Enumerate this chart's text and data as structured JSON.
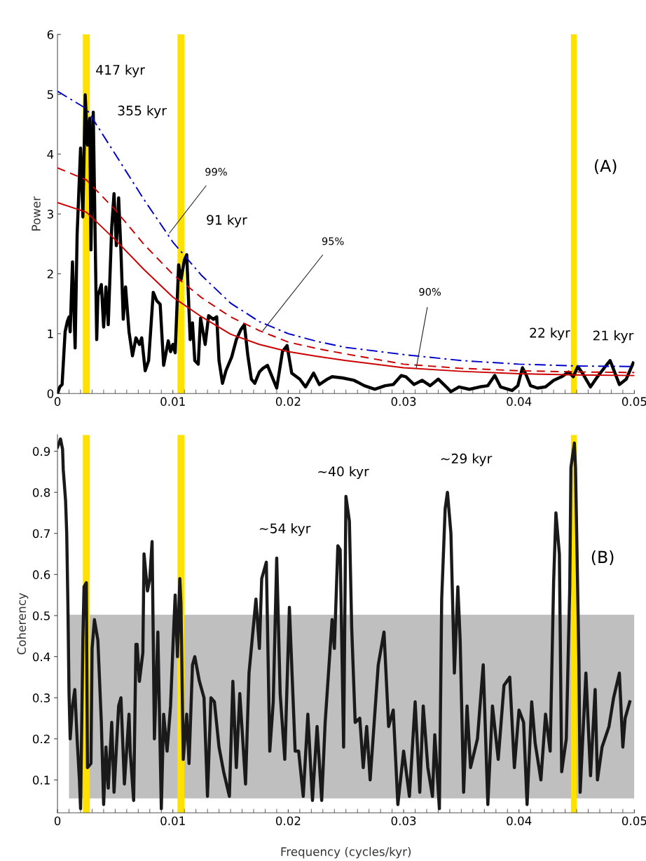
{
  "chart_data": [
    {
      "type": "line",
      "ylabel": "Power",
      "xlim": [
        0,
        0.05
      ],
      "xticks": [
        0,
        0.01,
        0.02,
        0.03,
        0.04,
        0.05
      ],
      "ylim": [
        0,
        6
      ],
      "yticks": [
        0,
        1,
        2,
        3,
        4,
        5,
        6
      ],
      "grid": false,
      "legend": false,
      "marker": "none",
      "series": [
        {
          "color": "#000000",
          "line_style": "solid",
          "x": [
            0,
            0.0002,
            0.0004,
            0.00066,
            0.00085,
            0.001,
            0.0011,
            0.0013,
            0.00153,
            0.0017,
            0.002,
            0.0022,
            0.0024,
            0.0026,
            0.0028,
            0.0029,
            0.0031,
            0.0034,
            0.0035,
            0.0038,
            0.004,
            0.0042,
            0.0044,
            0.0047,
            0.0049,
            0.0051,
            0.0053,
            0.0055,
            0.0057,
            0.0059,
            0.0062,
            0.0065,
            0.0068,
            0.0071,
            0.0073,
            0.0076,
            0.0079,
            0.0083,
            0.0086,
            0.0089,
            0.0092,
            0.0096,
            0.0098,
            0.01,
            0.0102,
            0.0105,
            0.0107,
            0.011,
            0.0112,
            0.0115,
            0.0117,
            0.0119,
            0.0122,
            0.0124,
            0.0128,
            0.0131,
            0.0135,
            0.0138,
            0.014,
            0.0143,
            0.0146,
            0.0151,
            0.0155,
            0.0159,
            0.0162,
            0.0165,
            0.0168,
            0.0171,
            0.0175,
            0.0178,
            0.0182,
            0.0186,
            0.019,
            0.0195,
            0.0199,
            0.0203,
            0.021,
            0.0215,
            0.0222,
            0.0227,
            0.0234,
            0.0238,
            0.0247,
            0.0257,
            0.0266,
            0.0275,
            0.0284,
            0.0291,
            0.0298,
            0.0302,
            0.0309,
            0.0316,
            0.0323,
            0.033,
            0.0337,
            0.0341,
            0.0348,
            0.0357,
            0.0366,
            0.0373,
            0.0379,
            0.0384,
            0.0394,
            0.0399,
            0.0403,
            0.0406,
            0.041,
            0.0416,
            0.0423,
            0.043,
            0.0437,
            0.0443,
            0.0447,
            0.0451,
            0.0455,
            0.0462,
            0.0468,
            0.0474,
            0.0479,
            0.0487,
            0.0493,
            0.0499
          ],
          "values": [
            0,
            0.11,
            0.15,
            1.03,
            1.2,
            1.28,
            1.03,
            2.2,
            0.76,
            2.65,
            4.1,
            2.95,
            4.99,
            4.15,
            4.6,
            2.4,
            4.7,
            0.9,
            1.63,
            1.82,
            1.11,
            1.78,
            1.15,
            2.78,
            3.34,
            2.47,
            3.27,
            2.38,
            1.24,
            1.78,
            1.03,
            0.63,
            0.93,
            0.82,
            0.93,
            0.38,
            0.55,
            1.69,
            1.55,
            1.49,
            0.47,
            0.88,
            0.7,
            0.82,
            0.68,
            2.15,
            1.9,
            2.23,
            2.32,
            0.9,
            1.18,
            0.55,
            0.49,
            1.26,
            0.82,
            1.3,
            1.24,
            1.28,
            0.55,
            0.17,
            0.38,
            0.61,
            0.9,
            1.07,
            1.15,
            0.63,
            0.24,
            0.17,
            0.36,
            0.42,
            0.47,
            0.28,
            0.09,
            0.7,
            0.8,
            0.34,
            0.24,
            0.11,
            0.34,
            0.15,
            0.24,
            0.28,
            0.26,
            0.22,
            0.13,
            0.07,
            0.13,
            0.15,
            0.3,
            0.28,
            0.15,
            0.22,
            0.13,
            0.24,
            0.11,
            0.03,
            0.11,
            0.07,
            0.11,
            0.13,
            0.3,
            0.11,
            0.05,
            0.13,
            0.43,
            0.32,
            0.13,
            0.09,
            0.11,
            0.22,
            0.28,
            0.36,
            0.28,
            0.45,
            0.34,
            0.11,
            0.28,
            0.43,
            0.55,
            0.15,
            0.24,
            0.51
          ]
        },
        {
          "color": "#0000cc",
          "line_style": "dashdot",
          "x": [
            0,
            0.0025,
            0.005,
            0.0075,
            0.01,
            0.0125,
            0.015,
            0.0175,
            0.02,
            0.0225,
            0.025,
            0.03,
            0.035,
            0.04,
            0.045,
            0.05
          ],
          "values": [
            5.05,
            4.76,
            4.0,
            3.24,
            2.53,
            1.97,
            1.51,
            1.2,
            1.0,
            0.87,
            0.77,
            0.65,
            0.55,
            0.49,
            0.46,
            0.45
          ]
        },
        {
          "color": "#cc0000",
          "line_style": "dashed",
          "x": [
            0,
            0.0025,
            0.005,
            0.0075,
            0.01,
            0.0125,
            0.015,
            0.0175,
            0.02,
            0.0225,
            0.025,
            0.03,
            0.035,
            0.04,
            0.045,
            0.05
          ],
          "values": [
            3.77,
            3.57,
            3.07,
            2.49,
            1.99,
            1.6,
            1.28,
            1.05,
            0.86,
            0.75,
            0.66,
            0.49,
            0.42,
            0.38,
            0.36,
            0.35
          ]
        },
        {
          "color": "#cc0000",
          "line_style": "solid",
          "x": [
            0,
            0.0025,
            0.005,
            0.0075,
            0.01,
            0.0125,
            0.015,
            0.0175,
            0.02,
            0.0225,
            0.025,
            0.03,
            0.035,
            0.04,
            0.045,
            0.05
          ],
          "values": [
            3.19,
            3.03,
            2.57,
            2.07,
            1.61,
            1.28,
            0.99,
            0.82,
            0.7,
            0.62,
            0.55,
            0.43,
            0.37,
            0.33,
            0.31,
            0.3
          ]
        }
      ],
      "bands": [
        {
          "axis": "x",
          "from": 0.0022,
          "to": 0.0028,
          "color": "#ffe100"
        },
        {
          "axis": "x",
          "from": 0.0104,
          "to": 0.011,
          "color": "#ffe100"
        },
        {
          "axis": "x",
          "from": 0.0445,
          "to": 0.045,
          "color": "#ffe100"
        }
      ],
      "annotations": [
        {
          "text": "417 kyr",
          "x": 0.0024,
          "y": 4.99
        },
        {
          "text": "355 kyr",
          "x": 0.0031,
          "y": 4.7
        },
        {
          "text": "91 kyr",
          "x": 0.0112,
          "y": 2.32
        },
        {
          "text": "22 kyr",
          "x": 0.0451,
          "y": 0.45
        },
        {
          "text": "21 kyr",
          "x": 0.0479,
          "y": 0.55
        },
        {
          "text": "99%",
          "x": 0.0097,
          "y": 2.68
        },
        {
          "text": "95%",
          "x": 0.0178,
          "y": 1.05
        },
        {
          "text": "90%",
          "x": 0.0311,
          "y": 0.43
        },
        "(A)"
      ]
    },
    {
      "type": "line",
      "xlabel": "Frequency (cycles/kyr)",
      "ylabel": "Coherency",
      "xlim": [
        0,
        0.05
      ],
      "xticks": [
        0,
        0.01,
        0.02,
        0.03,
        0.04,
        0.05
      ],
      "ylim": [
        0.02,
        0.94
      ],
      "yticks": [
        0.1,
        0.2,
        0.3,
        0.4,
        0.5,
        0.6,
        0.7,
        0.8,
        0.9
      ],
      "grid": false,
      "legend": false,
      "marker": "none",
      "series": [
        {
          "color": "#1a1a1a",
          "line_style": "solid",
          "x": [
            0,
            0.00026,
            0.00044,
            0.0005,
            0.0007,
            0.0008,
            0.0009,
            0.001,
            0.0011,
            0.0013,
            0.0015,
            0.0017,
            0.0019,
            0.002,
            0.0022,
            0.0023,
            0.0025,
            0.0026,
            0.0029,
            0.003,
            0.0032,
            0.0035,
            0.0038,
            0.004,
            0.0042,
            0.0044,
            0.0047,
            0.0049,
            0.0053,
            0.0055,
            0.0058,
            0.0062,
            0.0063,
            0.0066,
            0.0068,
            0.0069,
            0.0071,
            0.0074,
            0.0075,
            0.0078,
            0.008,
            0.0082,
            0.0084,
            0.0087,
            0.009,
            0.0092,
            0.0095,
            0.0098,
            0.01,
            0.0102,
            0.0104,
            0.0106,
            0.0107,
            0.0109,
            0.0112,
            0.0114,
            0.0117,
            0.0119,
            0.0123,
            0.0127,
            0.013,
            0.0133,
            0.0136,
            0.014,
            0.0144,
            0.0149,
            0.0152,
            0.0155,
            0.0158,
            0.0163,
            0.0166,
            0.017,
            0.0172,
            0.0175,
            0.0177,
            0.0181,
            0.0184,
            0.0187,
            0.019,
            0.0193,
            0.0197,
            0.0201,
            0.0206,
            0.0209,
            0.0213,
            0.0217,
            0.0221,
            0.0225,
            0.0229,
            0.0232,
            0.0238,
            0.024,
            0.0243,
            0.0245,
            0.0248,
            0.025,
            0.0253,
            0.0255,
            0.0258,
            0.0262,
            0.0265,
            0.0268,
            0.0271,
            0.0278,
            0.0283,
            0.0287,
            0.0291,
            0.0295,
            0.03,
            0.0305,
            0.031,
            0.0314,
            0.0317,
            0.0321,
            0.0325,
            0.0327,
            0.0331,
            0.0333,
            0.0336,
            0.0338,
            0.0341,
            0.0344,
            0.0347,
            0.0349,
            0.0352,
            0.0355,
            0.0358,
            0.0364,
            0.0369,
            0.0373,
            0.0377,
            0.0382,
            0.0387,
            0.0392,
            0.0396,
            0.04,
            0.0404,
            0.0407,
            0.0411,
            0.0414,
            0.0419,
            0.0423,
            0.0427,
            0.043,
            0.0432,
            0.0435,
            0.0437,
            0.0441,
            0.0444,
            0.0445,
            0.0448,
            0.0449,
            0.0452,
            0.0453,
            0.0458,
            0.0462,
            0.0466,
            0.0468,
            0.0472,
            0.0478,
            0.0482,
            0.0487,
            0.049,
            0.0492,
            0.0496
          ],
          "values": [
            0.91,
            0.93,
            0.905,
            0.855,
            0.78,
            0.7,
            0.53,
            0.31,
            0.2,
            0.28,
            0.32,
            0.2,
            0.1,
            0.03,
            0.44,
            0.57,
            0.58,
            0.13,
            0.14,
            0.42,
            0.49,
            0.44,
            0.24,
            0.04,
            0.18,
            0.08,
            0.24,
            0.07,
            0.28,
            0.3,
            0.09,
            0.26,
            0.17,
            0.05,
            0.43,
            0.43,
            0.34,
            0.41,
            0.65,
            0.56,
            0.59,
            0.68,
            0.2,
            0.46,
            0.03,
            0.26,
            0.17,
            0.28,
            0.42,
            0.55,
            0.4,
            0.59,
            0.53,
            0.15,
            0.26,
            0.14,
            0.38,
            0.4,
            0.34,
            0.3,
            0.06,
            0.3,
            0.29,
            0.18,
            0.12,
            0.06,
            0.34,
            0.13,
            0.31,
            0.09,
            0.36,
            0.48,
            0.54,
            0.42,
            0.59,
            0.63,
            0.17,
            0.29,
            0.64,
            0.31,
            0.15,
            0.52,
            0.17,
            0.17,
            0.06,
            0.26,
            0.05,
            0.23,
            0.05,
            0.24,
            0.49,
            0.42,
            0.67,
            0.66,
            0.18,
            0.79,
            0.73,
            0.47,
            0.24,
            0.25,
            0.13,
            0.23,
            0.1,
            0.38,
            0.46,
            0.23,
            0.27,
            0.04,
            0.17,
            0.06,
            0.29,
            0.07,
            0.28,
            0.13,
            0.06,
            0.21,
            0.03,
            0.54,
            0.76,
            0.8,
            0.7,
            0.36,
            0.57,
            0.44,
            0.07,
            0.28,
            0.13,
            0.2,
            0.38,
            0.04,
            0.28,
            0.15,
            0.33,
            0.35,
            0.13,
            0.27,
            0.24,
            0.04,
            0.29,
            0.19,
            0.1,
            0.26,
            0.17,
            0.58,
            0.75,
            0.65,
            0.12,
            0.2,
            0.57,
            0.86,
            0.92,
            0.86,
            0.38,
            0.07,
            0.36,
            0.11,
            0.32,
            0.1,
            0.18,
            0.23,
            0.3,
            0.36,
            0.18,
            0.25,
            0.29
          ]
        }
      ],
      "bands": [
        {
          "axis": "y",
          "from": 0.055,
          "to": 0.502,
          "color": "#bfbfbf"
        },
        {
          "axis": "x",
          "from": 0.0022,
          "to": 0.0028,
          "color": "#ffe100"
        },
        {
          "axis": "x",
          "from": 0.0104,
          "to": 0.011,
          "color": "#ffe100"
        },
        {
          "axis": "x",
          "from": 0.0445,
          "to": 0.045,
          "color": "#ffe100"
        }
      ],
      "annotations": [
        {
          "text": "~54 kyr",
          "x": 0.0185,
          "y": 0.63
        },
        {
          "text": "~40 kyr",
          "x": 0.025,
          "y": 0.79
        },
        {
          "text": "~29 kyr",
          "x": 0.0338,
          "y": 0.8
        },
        "(B)"
      ]
    }
  ]
}
